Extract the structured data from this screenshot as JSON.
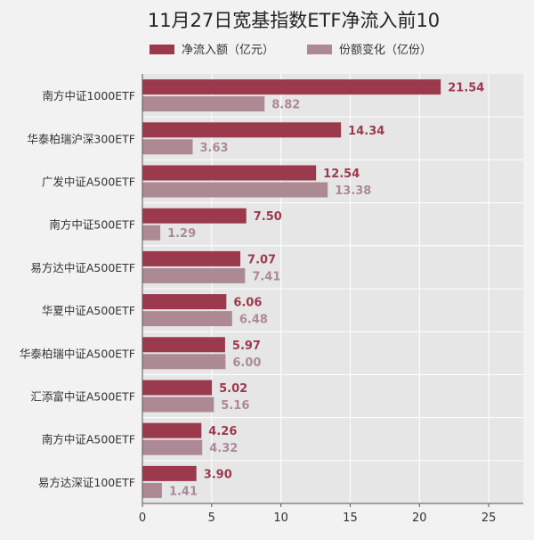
{
  "chart_data": {
    "type": "bar",
    "orientation": "horizontal",
    "title": "11月27日宽基指数ETF净流入前10",
    "categories": [
      "南方中证1000ETF",
      "华泰柏瑞沪深300ETF",
      "广发中证A500ETF",
      "南方中证500ETF",
      "易方达中证A500ETF",
      "华夏中证A500ETF",
      "华泰柏瑞中证A500ETF",
      "汇添富中证A500ETF",
      "南方中证A500ETF",
      "易方达深证100ETF"
    ],
    "series": [
      {
        "name": "净流入额（亿元）",
        "color": "#9b3a4d",
        "values": [
          21.54,
          14.34,
          12.54,
          7.5,
          7.07,
          6.06,
          5.97,
          5.02,
          4.26,
          3.9
        ],
        "labels": [
          "21.54",
          "14.34",
          "12.54",
          "7.50",
          "7.07",
          "6.06",
          "5.97",
          "5.02",
          "4.26",
          "3.90"
        ]
      },
      {
        "name": "份额变化（亿份）",
        "color": "#ad8a93",
        "values": [
          8.82,
          3.63,
          13.38,
          1.29,
          7.41,
          6.48,
          6.0,
          5.16,
          4.32,
          1.41
        ],
        "labels": [
          "8.82",
          "3.63",
          "13.38",
          "1.29",
          "7.41",
          "6.48",
          "6.00",
          "5.16",
          "4.32",
          "1.41"
        ]
      }
    ],
    "x_ticks": [
      "0",
      "5",
      "10",
      "15",
      "20",
      "25"
    ],
    "xlim": [
      0,
      27.5
    ],
    "grid": true,
    "legend_position": "top-center",
    "colors": {
      "background": "#f2f2f2",
      "plot_background": "#e6e6e6",
      "grid": "#ffffff",
      "text": "#333333"
    }
  }
}
